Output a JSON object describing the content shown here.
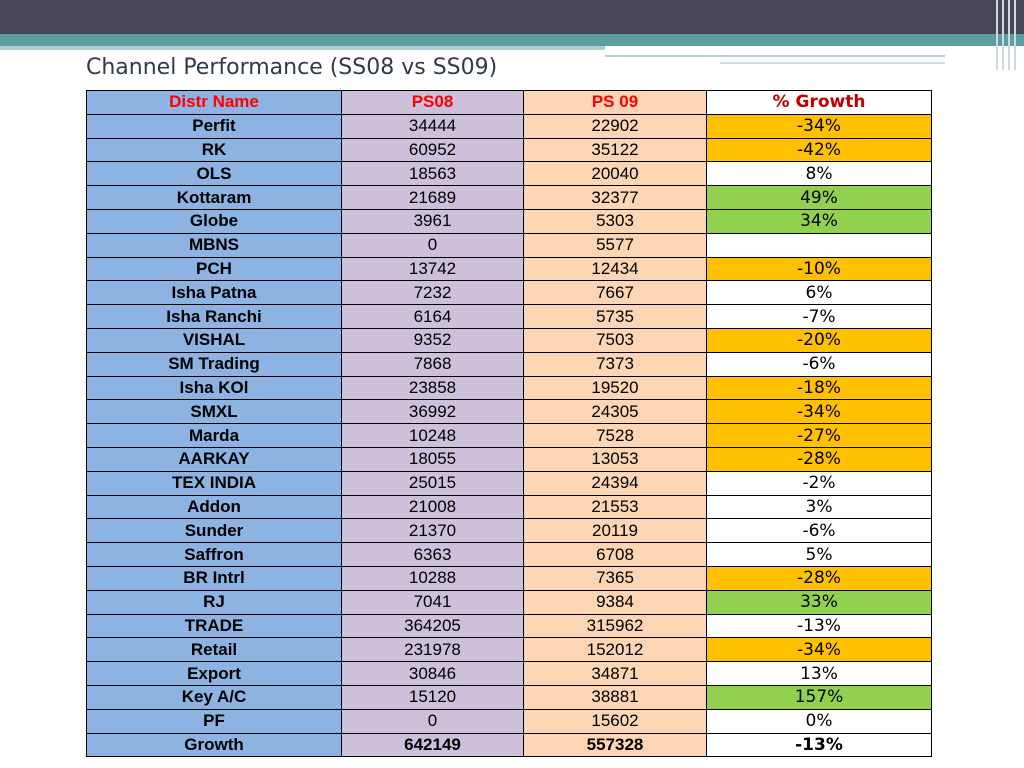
{
  "title": "Channel Performance (SS08 vs SS09)",
  "colors": {
    "header_band": "#464657",
    "teal_band": "#5f9ea0",
    "name_column": "#8db3e2",
    "ps08_column": "#ccc0da",
    "ps09_column": "#fcd5b4",
    "header_text": "#ff0000",
    "growth_header_text": "#c00000",
    "decline": "#ffc000",
    "increase": "#92d050",
    "neutral": "#ffffff"
  },
  "table": {
    "headers": {
      "name": "Distr Name",
      "ps08": "PS08",
      "ps09": "PS 09",
      "growth": "% Growth"
    },
    "rows": [
      {
        "name": "Perfit",
        "ps08": "34444",
        "ps09": "22902",
        "growth": "-34%",
        "status": "decline"
      },
      {
        "name": "RK",
        "ps08": "60952",
        "ps09": "35122",
        "growth": "-42%",
        "status": "decline"
      },
      {
        "name": "OLS",
        "ps08": "18563",
        "ps09": "20040",
        "growth": "8%",
        "status": "neutral"
      },
      {
        "name": "Kottaram",
        "ps08": "21689",
        "ps09": "32377",
        "growth": "49%",
        "status": "increase"
      },
      {
        "name": "Globe",
        "ps08": "3961",
        "ps09": "5303",
        "growth": "34%",
        "status": "increase"
      },
      {
        "name": "MBNS",
        "ps08": "0",
        "ps09": "5577",
        "growth": "",
        "status": "neutral"
      },
      {
        "name": "PCH",
        "ps08": "13742",
        "ps09": "12434",
        "growth": "-10%",
        "status": "decline"
      },
      {
        "name": "Isha Patna",
        "ps08": "7232",
        "ps09": "7667",
        "growth": "6%",
        "status": "neutral"
      },
      {
        "name": "Isha Ranchi",
        "ps08": "6164",
        "ps09": "5735",
        "growth": "-7%",
        "status": "neutral"
      },
      {
        "name": "VISHAL",
        "ps08": "9352",
        "ps09": "7503",
        "growth": "-20%",
        "status": "decline"
      },
      {
        "name": "SM Trading",
        "ps08": "7868",
        "ps09": "7373",
        "growth": "-6%",
        "status": "neutral"
      },
      {
        "name": "Isha KOl",
        "ps08": "23858",
        "ps09": "19520",
        "growth": "-18%",
        "status": "decline"
      },
      {
        "name": "SMXL",
        "ps08": "36992",
        "ps09": "24305",
        "growth": "-34%",
        "status": "decline"
      },
      {
        "name": "Marda",
        "ps08": "10248",
        "ps09": "7528",
        "growth": "-27%",
        "status": "decline"
      },
      {
        "name": "AARKAY",
        "ps08": "18055",
        "ps09": "13053",
        "growth": "-28%",
        "status": "decline"
      },
      {
        "name": "TEX INDIA",
        "ps08": "25015",
        "ps09": "24394",
        "growth": "-2%",
        "status": "neutral"
      },
      {
        "name": "Addon",
        "ps08": "21008",
        "ps09": "21553",
        "growth": "3%",
        "status": "neutral"
      },
      {
        "name": "Sunder",
        "ps08": "21370",
        "ps09": "20119",
        "growth": "-6%",
        "status": "neutral"
      },
      {
        "name": "Saffron",
        "ps08": "6363",
        "ps09": "6708",
        "growth": "5%",
        "status": "neutral"
      },
      {
        "name": "BR Intrl",
        "ps08": "10288",
        "ps09": "7365",
        "growth": "-28%",
        "status": "decline"
      },
      {
        "name": "RJ",
        "ps08": "7041",
        "ps09": "9384",
        "growth": "33%",
        "status": "increase"
      },
      {
        "name": "TRADE",
        "ps08": "364205",
        "ps09": "315962",
        "growth": "-13%",
        "status": "neutral"
      },
      {
        "name": "Retail",
        "ps08": "231978",
        "ps09": "152012",
        "growth": "-34%",
        "status": "decline"
      },
      {
        "name": "Export",
        "ps08": "30846",
        "ps09": "34871",
        "growth": "13%",
        "status": "neutral"
      },
      {
        "name": "Key A/C",
        "ps08": "15120",
        "ps09": "38881",
        "growth": "157%",
        "status": "increase"
      },
      {
        "name": "PF",
        "ps08": "0",
        "ps09": "15602",
        "growth": "0%",
        "status": "neutral"
      }
    ],
    "total": {
      "name": "Growth",
      "ps08": "642149",
      "ps09": "557328",
      "growth": "-13%"
    }
  }
}
